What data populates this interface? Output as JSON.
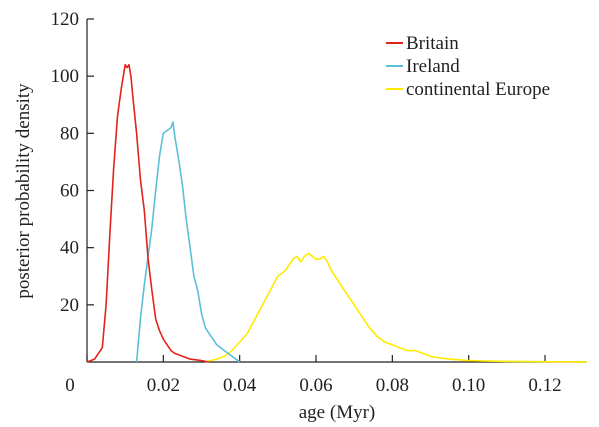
{
  "chart_data": {
    "type": "line",
    "title": "",
    "xlabel": "age (Myr)",
    "ylabel": "posterior probability density",
    "xlim": [
      0,
      0.131
    ],
    "ylim": [
      0,
      120
    ],
    "x_ticks": [
      0,
      0.02,
      0.04,
      0.06,
      0.08,
      0.1,
      0.12
    ],
    "x_tick_labels": [
      "0",
      "0.02",
      "0.04",
      "0.06",
      "0.08",
      "0.10",
      "0.12"
    ],
    "y_ticks": [
      20,
      40,
      60,
      80,
      100,
      120
    ],
    "y_tick_labels": [
      "20",
      "40",
      "60",
      "80",
      "100",
      "120"
    ],
    "grid": false,
    "legend_position": "top-right",
    "series": [
      {
        "name": "Britain",
        "color": "#e2231a",
        "x": [
          0.0,
          0.002,
          0.004,
          0.005,
          0.006,
          0.007,
          0.008,
          0.009,
          0.0095,
          0.01,
          0.0105,
          0.011,
          0.0115,
          0.012,
          0.013,
          0.014,
          0.015,
          0.016,
          0.017,
          0.018,
          0.019,
          0.02,
          0.021,
          0.022,
          0.023,
          0.025,
          0.027,
          0.03,
          0.032
        ],
        "y": [
          0,
          1,
          5,
          20,
          45,
          68,
          86,
          96,
          100,
          104,
          103,
          104,
          100,
          93,
          80,
          64,
          53,
          36,
          25,
          15,
          11,
          8,
          6,
          4,
          3,
          2,
          1,
          0.5,
          0
        ]
      },
      {
        "name": "Ireland",
        "color": "#5bc0d6",
        "x": [
          0.013,
          0.014,
          0.015,
          0.016,
          0.017,
          0.018,
          0.019,
          0.02,
          0.021,
          0.022,
          0.0225,
          0.023,
          0.024,
          0.025,
          0.026,
          0.027,
          0.028,
          0.029,
          0.03,
          0.031,
          0.032,
          0.033,
          0.034,
          0.035,
          0.036,
          0.037,
          0.038,
          0.039,
          0.04
        ],
        "y": [
          0,
          15,
          27,
          37,
          47,
          60,
          72,
          80,
          81,
          82,
          84,
          79,
          71,
          62,
          50,
          40,
          30,
          25,
          17,
          12,
          10,
          8,
          6,
          5,
          4,
          3,
          2,
          1,
          0
        ]
      },
      {
        "name": "continental Europe",
        "color": "#ffea00",
        "x": [
          0.031,
          0.034,
          0.036,
          0.038,
          0.04,
          0.042,
          0.044,
          0.046,
          0.048,
          0.05,
          0.052,
          0.054,
          0.055,
          0.056,
          0.057,
          0.058,
          0.059,
          0.06,
          0.061,
          0.062,
          0.063,
          0.064,
          0.066,
          0.068,
          0.07,
          0.072,
          0.074,
          0.076,
          0.078,
          0.08,
          0.082,
          0.084,
          0.086,
          0.088,
          0.09,
          0.092,
          0.095,
          0.1,
          0.105,
          0.11,
          0.12,
          0.131
        ],
        "y": [
          0,
          1,
          2,
          4,
          7,
          10,
          15,
          20,
          25,
          30,
          32,
          36,
          37,
          35,
          37,
          38,
          37,
          36,
          36,
          37,
          35,
          32,
          28,
          24,
          20,
          16,
          12,
          9,
          7,
          6,
          5,
          4,
          4,
          3,
          2,
          1.5,
          1,
          0.5,
          0.3,
          0.2,
          0.1,
          0
        ]
      }
    ]
  }
}
